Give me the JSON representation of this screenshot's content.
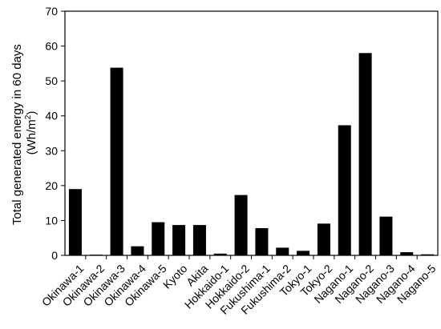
{
  "chart_data": {
    "type": "bar",
    "title": "",
    "xlabel": "",
    "ylabel_line1": "Total generated energy in 60 days",
    "ylabel_line2_main": "(Wh/m",
    "ylabel_line2_sup": "2",
    "ylabel_line2_end": ")",
    "ylim": [
      0,
      70
    ],
    "yticks": [
      "0",
      "10",
      "20",
      "30",
      "40",
      "50",
      "60",
      "70"
    ],
    "grid": false,
    "legend": "none",
    "bar_color": "#000000",
    "categories": [
      "Okinawa-1",
      "Okinawa-2",
      "Okinawa-3",
      "Okinawa-4",
      "Okinawa-5",
      "Kyoto",
      "Akita",
      "Hokkaido-1",
      "Hokkaido-2",
      "Fukushima-1",
      "Fukushima-2",
      "Tokyo-1",
      "Tokyo-2",
      "Nagano-1",
      "Nagano-2",
      "Nagano-3",
      "Nagano-4",
      "Nagano-5"
    ],
    "values": [
      19.0,
      0.2,
      53.8,
      2.6,
      9.5,
      8.7,
      8.7,
      0.5,
      17.3,
      7.8,
      2.2,
      1.3,
      9.1,
      37.3,
      58.0,
      11.1,
      0.9,
      0.3
    ]
  }
}
